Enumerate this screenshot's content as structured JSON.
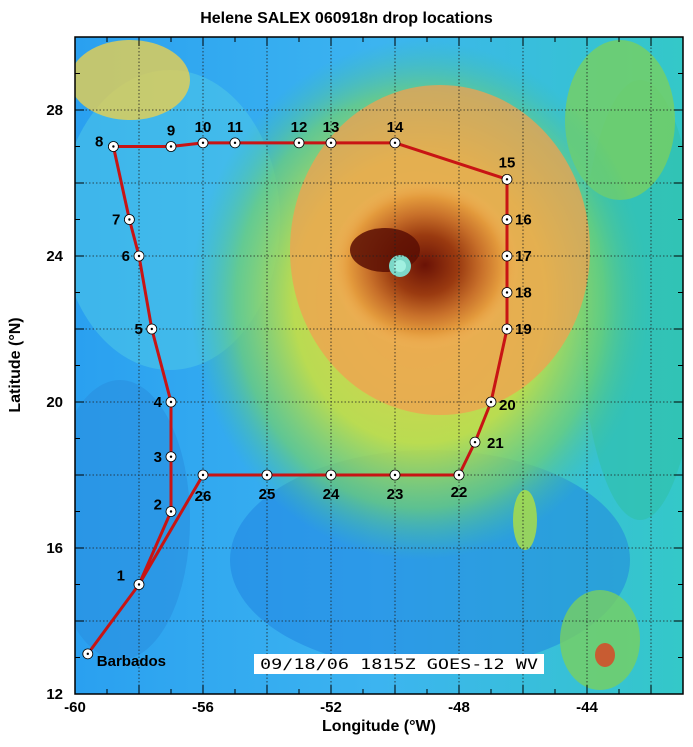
{
  "title": "Helene SALEX 060918n drop locations",
  "xlabel": "Longitude (°W)",
  "ylabel": "Latitude (°N)",
  "stamp": "09/18/06 1815Z GOES-12 WV",
  "colors": {
    "track": "#c81414",
    "grid": "#202020",
    "marker_fill": "#ffffff"
  },
  "chart_data": {
    "type": "map-track",
    "xlim": [
      -60,
      -41
    ],
    "ylim": [
      12,
      30
    ],
    "xticks": [
      -60,
      -56,
      -52,
      -48,
      -44
    ],
    "yticks": [
      12,
      16,
      20,
      24,
      28
    ],
    "grid": true,
    "origin": {
      "name": "Barbados",
      "lon": -59.6,
      "lat": 13.1
    },
    "drops": [
      {
        "id": "1",
        "lon": -58.0,
        "lat": 15.0
      },
      {
        "id": "2",
        "lon": -57.0,
        "lat": 17.0
      },
      {
        "id": "3",
        "lon": -57.0,
        "lat": 18.5
      },
      {
        "id": "4",
        "lon": -57.0,
        "lat": 20.0
      },
      {
        "id": "5",
        "lon": -57.6,
        "lat": 22.0
      },
      {
        "id": "6",
        "lon": -58.0,
        "lat": 24.0
      },
      {
        "id": "7",
        "lon": -58.3,
        "lat": 25.0
      },
      {
        "id": "8",
        "lon": -58.8,
        "lat": 27.0
      },
      {
        "id": "9",
        "lon": -57.0,
        "lat": 27.0
      },
      {
        "id": "10",
        "lon": -56.0,
        "lat": 27.1
      },
      {
        "id": "11",
        "lon": -55.0,
        "lat": 27.1
      },
      {
        "id": "12",
        "lon": -53.0,
        "lat": 27.1
      },
      {
        "id": "13",
        "lon": -52.0,
        "lat": 27.1
      },
      {
        "id": "14",
        "lon": -50.0,
        "lat": 27.1
      },
      {
        "id": "15",
        "lon": -46.5,
        "lat": 26.1
      },
      {
        "id": "16",
        "lon": -46.5,
        "lat": 25.0
      },
      {
        "id": "17",
        "lon": -46.5,
        "lat": 24.0
      },
      {
        "id": "18",
        "lon": -46.5,
        "lat": 23.0
      },
      {
        "id": "19",
        "lon": -46.5,
        "lat": 22.0
      },
      {
        "id": "20",
        "lon": -47.0,
        "lat": 20.0
      },
      {
        "id": "21",
        "lon": -47.5,
        "lat": 18.9
      },
      {
        "id": "22",
        "lon": -48.0,
        "lat": 18.0
      },
      {
        "id": "23",
        "lon": -50.0,
        "lat": 18.0
      },
      {
        "id": "24",
        "lon": -52.0,
        "lat": 18.0
      },
      {
        "id": "25",
        "lon": -54.0,
        "lat": 18.0
      },
      {
        "id": "26",
        "lon": -56.0,
        "lat": 18.0
      }
    ]
  }
}
